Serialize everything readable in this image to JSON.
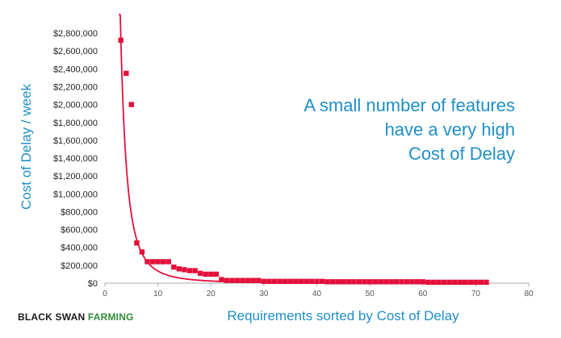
{
  "colors": {
    "accent_text": "#1f8fc7",
    "marker": "#e3103a",
    "curve": "#e3103a",
    "axis": "#aaaaaa",
    "brand_dark": "#1a1a1a",
    "brand_green": "#2e8b3a"
  },
  "brand": {
    "part1": "BLACK SWAN ",
    "part2": "FARMING"
  },
  "chart_data": {
    "type": "scatter",
    "xlabel": "Requirements sorted by Cost of Delay",
    "ylabel": "Cost of Delay / week",
    "xlim": [
      0,
      80
    ],
    "ylim": [
      0,
      2900000
    ],
    "x_ticks": [
      0,
      10,
      20,
      30,
      40,
      50,
      60,
      70,
      80
    ],
    "x_tick_labels": [
      "0",
      "10",
      "20",
      "30",
      "40",
      "50",
      "60",
      "70",
      "80"
    ],
    "y_ticks": [
      0,
      200000,
      400000,
      600000,
      800000,
      1000000,
      1200000,
      1400000,
      1600000,
      1800000,
      2000000,
      2200000,
      2400000,
      2600000,
      2800000
    ],
    "y_tick_labels": [
      "$0",
      "$200,000",
      "$400,000",
      "$600,000",
      "$800,000",
      "$1,000,000",
      "$1,200,000",
      "$1,400,000",
      "$1,600,000",
      "$1,800,000",
      "$2,000,000",
      "$2,200,000",
      "$2,400,000",
      "$2,600,000",
      "$2,800,000"
    ],
    "grid": false,
    "legend": false,
    "annotation": [
      "A small number of features",
      "have a very high",
      "Cost of Delay"
    ],
    "annotation_position": "top-right",
    "trendline": {
      "type": "power",
      "coefficient": 43000000,
      "exponent": -2.5
    },
    "series": [
      {
        "x": [
          3,
          4,
          5,
          6,
          7,
          8,
          9,
          10,
          11,
          12,
          13,
          14,
          15,
          16,
          17,
          18,
          19,
          20,
          21,
          22,
          23,
          24,
          25,
          26,
          27,
          28,
          29,
          30,
          31,
          32,
          33,
          34,
          35,
          36,
          37,
          38,
          39,
          40,
          41,
          42,
          43,
          44,
          45,
          46,
          47,
          48,
          49,
          50,
          51,
          52,
          53,
          54,
          55,
          56,
          57,
          58,
          59,
          60,
          61,
          62,
          63,
          64,
          65,
          66,
          67,
          68,
          69,
          70,
          71,
          72
        ],
        "y": [
          2720000,
          2350000,
          2000000,
          450000,
          350000,
          240000,
          240000,
          240000,
          240000,
          240000,
          180000,
          160000,
          150000,
          140000,
          140000,
          110000,
          100000,
          100000,
          100000,
          40000,
          30000,
          30000,
          30000,
          30000,
          30000,
          30000,
          30000,
          20000,
          20000,
          20000,
          20000,
          20000,
          20000,
          20000,
          20000,
          20000,
          20000,
          20000,
          20000,
          15000,
          15000,
          15000,
          15000,
          15000,
          15000,
          15000,
          15000,
          15000,
          15000,
          15000,
          15000,
          15000,
          15000,
          15000,
          15000,
          15000,
          15000,
          15000,
          10000,
          10000,
          10000,
          10000,
          10000,
          10000,
          10000,
          10000,
          10000,
          10000,
          10000,
          10000
        ]
      }
    ]
  }
}
